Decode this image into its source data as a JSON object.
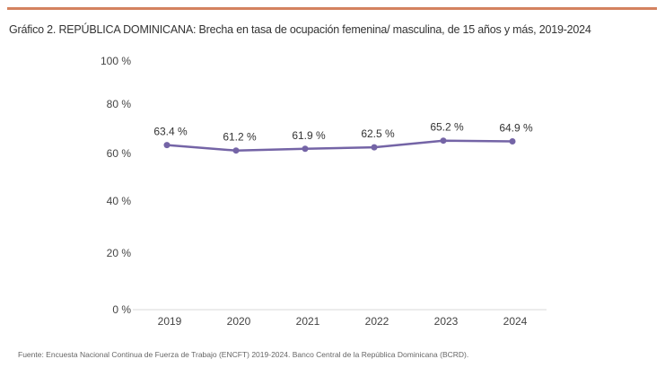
{
  "title": "Gráfico 2. REPÚBLICA DOMINICANA: Brecha en tasa de ocupación femenina/ masculina, de 15 años y más, 2019-2024",
  "source": "Fuente: Encuesta Nacional Continua de Fuerza de Trabajo (ENCFT) 2019-2024. Banco Central de la República Dominicana (BCRD).",
  "colors": {
    "accent_rule": "#d4825f",
    "series": "#7464a6",
    "axis": "#d9d9d9"
  },
  "chart_data": {
    "type": "line",
    "title": "Gráfico 2. REPÚBLICA DOMINICANA: Brecha en tasa de ocupación femenina/ masculina, de 15 años y más, 2019-2024",
    "xlabel": "",
    "ylabel": "",
    "categories": [
      "2019",
      "2020",
      "2021",
      "2022",
      "2023",
      "2024"
    ],
    "series": [
      {
        "values": [
          63.4,
          61.2,
          61.9,
          62.5,
          65.2,
          64.9
        ]
      }
    ],
    "data_labels": [
      "63.4 %",
      "61.2 %",
      "61.9 %",
      "62.5 %",
      "65.2 %",
      "64.9 %"
    ],
    "yticks": [
      0,
      20,
      40,
      60,
      80,
      100
    ],
    "ytick_labels": [
      "0 %",
      "20 %",
      "40 %",
      "60 %",
      "80 %",
      "100 %"
    ],
    "ylim": [
      0,
      100
    ],
    "grid": false,
    "legend": "none",
    "markers": true
  }
}
